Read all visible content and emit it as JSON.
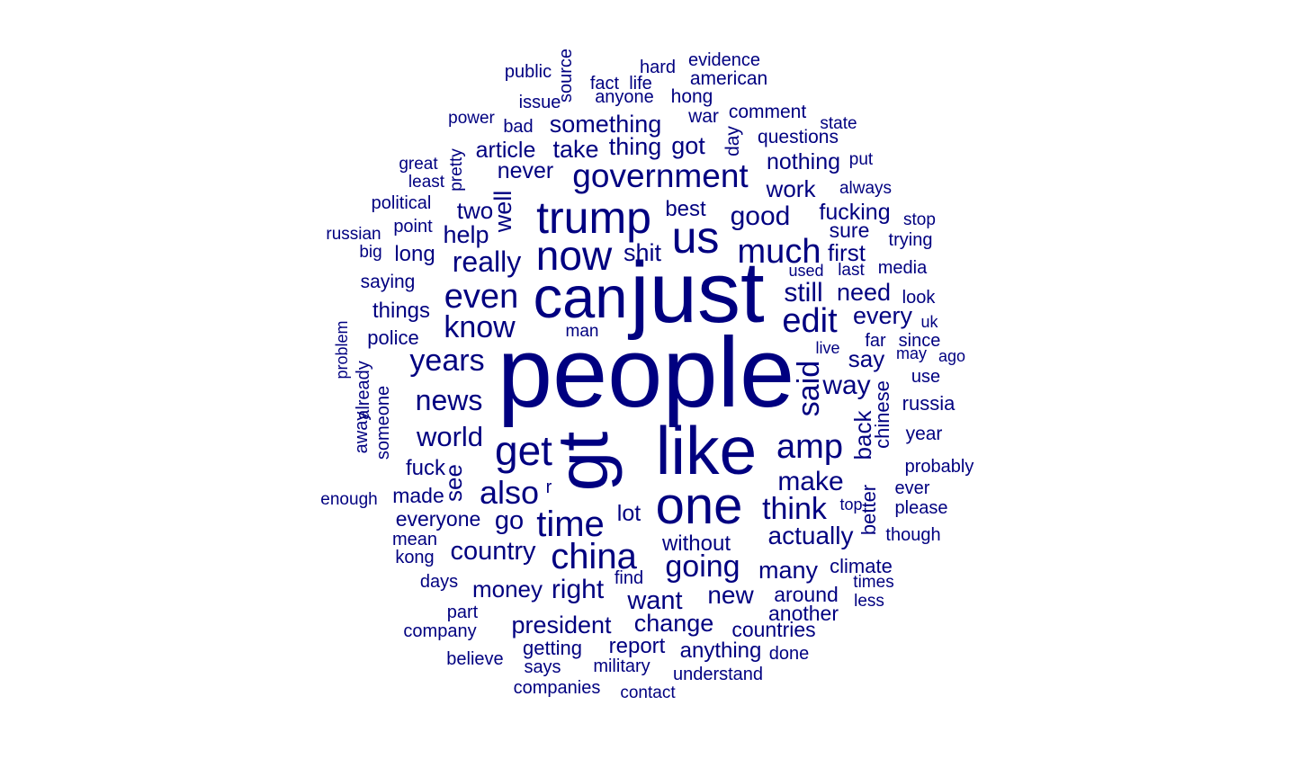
{
  "color": "#000080",
  "words": [
    {
      "text": "people"
    },
    {
      "text": "just"
    },
    {
      "text": "gt"
    },
    {
      "text": "like"
    },
    {
      "text": "can"
    },
    {
      "text": "one"
    },
    {
      "text": "trump"
    },
    {
      "text": "us"
    },
    {
      "text": "now"
    },
    {
      "text": "government"
    },
    {
      "text": "get"
    },
    {
      "text": "even"
    },
    {
      "text": "china"
    },
    {
      "text": "time"
    },
    {
      "text": "much"
    },
    {
      "text": "edit"
    },
    {
      "text": "amp"
    },
    {
      "text": "also"
    },
    {
      "text": "know"
    },
    {
      "text": "years"
    },
    {
      "text": "going"
    },
    {
      "text": "think"
    },
    {
      "text": "said"
    },
    {
      "text": "really"
    },
    {
      "text": "news"
    },
    {
      "text": "world"
    },
    {
      "text": "make"
    },
    {
      "text": "good"
    },
    {
      "text": "way"
    },
    {
      "text": "still"
    },
    {
      "text": "country"
    },
    {
      "text": "right"
    },
    {
      "text": "actually"
    },
    {
      "text": "want"
    },
    {
      "text": "many"
    },
    {
      "text": "new"
    },
    {
      "text": "something"
    },
    {
      "text": "need"
    },
    {
      "text": "every"
    },
    {
      "text": "say"
    },
    {
      "text": "back"
    },
    {
      "text": "go"
    },
    {
      "text": "president"
    },
    {
      "text": "change"
    },
    {
      "text": "money"
    },
    {
      "text": "thing"
    },
    {
      "text": "got"
    },
    {
      "text": "take"
    },
    {
      "text": "well"
    },
    {
      "text": "help"
    },
    {
      "text": "see"
    },
    {
      "text": "shit"
    },
    {
      "text": "first"
    },
    {
      "text": "work"
    },
    {
      "text": "fucking"
    },
    {
      "text": "two"
    },
    {
      "text": "article"
    },
    {
      "text": "never"
    },
    {
      "text": "nothing"
    },
    {
      "text": "best"
    },
    {
      "text": "lot"
    },
    {
      "text": "without"
    },
    {
      "text": "report"
    },
    {
      "text": "anything"
    },
    {
      "text": "countries"
    },
    {
      "text": "sure"
    },
    {
      "text": "long"
    },
    {
      "text": "things"
    },
    {
      "text": "world_"
    },
    {
      "text": "fuck"
    },
    {
      "text": "made"
    },
    {
      "text": "everyone"
    },
    {
      "text": "around"
    },
    {
      "text": "another"
    },
    {
      "text": "getting"
    },
    {
      "text": "climate"
    },
    {
      "text": "chinese"
    },
    {
      "text": "russia"
    },
    {
      "text": "better"
    },
    {
      "text": "year"
    },
    {
      "text": "police"
    },
    {
      "text": "saying"
    },
    {
      "text": "day"
    },
    {
      "text": "questions"
    },
    {
      "text": "comment"
    },
    {
      "text": "war"
    },
    {
      "text": "hong"
    },
    {
      "text": "american"
    },
    {
      "text": "evidence"
    },
    {
      "text": "hard"
    },
    {
      "text": "source"
    },
    {
      "text": "life"
    },
    {
      "text": "fact"
    },
    {
      "text": "anyone"
    },
    {
      "text": "public"
    },
    {
      "text": "issue"
    },
    {
      "text": "power"
    },
    {
      "text": "bad"
    },
    {
      "text": "state"
    },
    {
      "text": "great"
    },
    {
      "text": "pretty"
    },
    {
      "text": "least"
    },
    {
      "text": "put"
    },
    {
      "text": "always"
    },
    {
      "text": "political"
    },
    {
      "text": "stop"
    },
    {
      "text": "point"
    },
    {
      "text": "russian"
    },
    {
      "text": "trying"
    },
    {
      "text": "big"
    },
    {
      "text": "media"
    },
    {
      "text": "used"
    },
    {
      "text": "last"
    },
    {
      "text": "look"
    },
    {
      "text": "man"
    },
    {
      "text": "uk"
    },
    {
      "text": "far"
    },
    {
      "text": "since"
    },
    {
      "text": "problem"
    },
    {
      "text": "live"
    },
    {
      "text": "may"
    },
    {
      "text": "ago"
    },
    {
      "text": "already"
    },
    {
      "text": "use"
    },
    {
      "text": "someone"
    },
    {
      "text": "away"
    },
    {
      "text": "probably"
    },
    {
      "text": "r"
    },
    {
      "text": "enough"
    },
    {
      "text": "ever"
    },
    {
      "text": "top"
    },
    {
      "text": "please"
    },
    {
      "text": "mean"
    },
    {
      "text": "though"
    },
    {
      "text": "kong"
    },
    {
      "text": "find"
    },
    {
      "text": "days"
    },
    {
      "text": "times"
    },
    {
      "text": "less"
    },
    {
      "text": "part"
    },
    {
      "text": "company"
    },
    {
      "text": "done"
    },
    {
      "text": "believe"
    },
    {
      "text": "military"
    },
    {
      "text": "understand"
    },
    {
      "text": "says"
    },
    {
      "text": "companies"
    },
    {
      "text": "contact"
    }
  ]
}
